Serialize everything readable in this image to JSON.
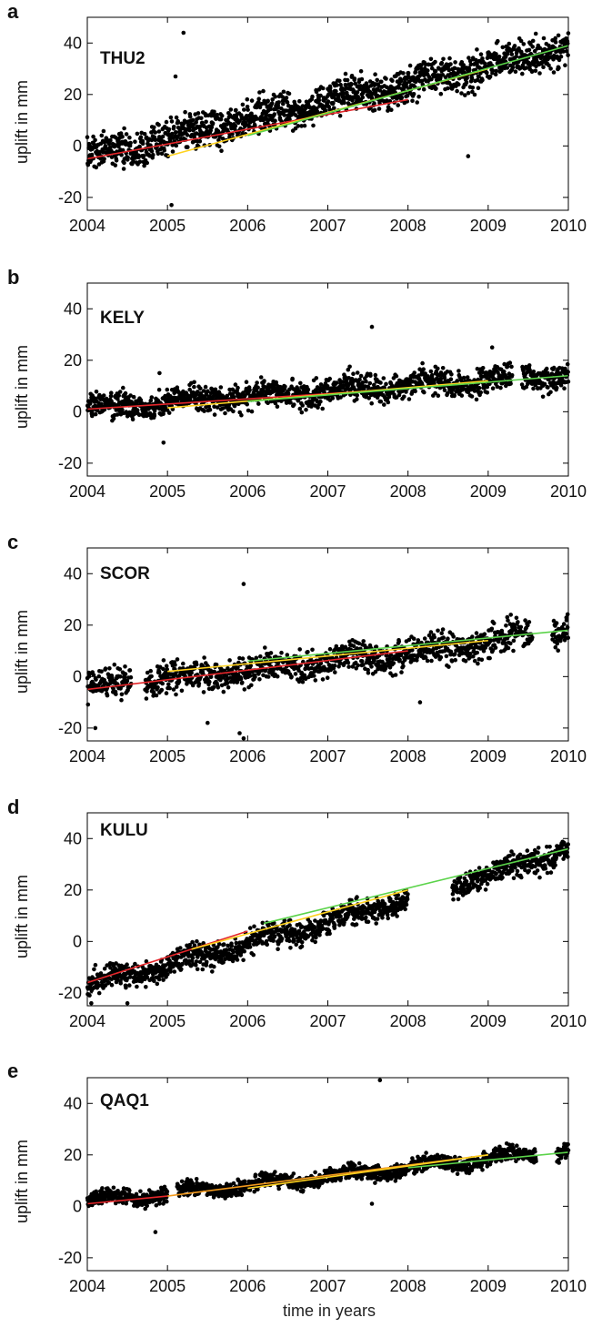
{
  "chart_data": [
    {
      "type": "scatter",
      "panel_label": "a",
      "station": "THU2",
      "ylabel": "uplift in mm",
      "xlim": [
        2004,
        2010
      ],
      "ylim": [
        -25,
        50
      ],
      "xticks": [
        "2004",
        "2005",
        "2006",
        "2007",
        "2008",
        "2009",
        "2010"
      ],
      "yticks": [
        "-20",
        "0",
        "20",
        "40"
      ],
      "ytick_values": [
        -20,
        0,
        20,
        40
      ],
      "scatter": {
        "t0": 2004,
        "t1": 2010,
        "y0": -4,
        "y1": 38,
        "quad": 0,
        "noise": 5.5,
        "count": 1500,
        "gaps": []
      },
      "trend_lines": [
        {
          "name": "red",
          "color": "#e4262a",
          "x": [
            2004.0,
            2008.0
          ],
          "y": [
            -5,
            18
          ]
        },
        {
          "name": "yellow",
          "color": "#ffd21f",
          "x": [
            2005.0,
            2009.0
          ],
          "y": [
            -4,
            30
          ]
        },
        {
          "name": "green",
          "color": "#5bd34a",
          "x": [
            2006.0,
            2010.0
          ],
          "y": [
            4,
            39
          ]
        }
      ],
      "outliers": [
        {
          "x": 2005.2,
          "y": 44
        },
        {
          "x": 2005.1,
          "y": 27
        },
        {
          "x": 2008.75,
          "y": -4
        },
        {
          "x": 2005.05,
          "y": -23
        }
      ]
    },
    {
      "type": "scatter",
      "panel_label": "b",
      "station": "KELY",
      "ylabel": "uplift in mm",
      "xlim": [
        2004,
        2010
      ],
      "ylim": [
        -25,
        50
      ],
      "xticks": [
        "2004",
        "2005",
        "2006",
        "2007",
        "2008",
        "2009",
        "2010"
      ],
      "yticks": [
        "-20",
        "0",
        "20",
        "40"
      ],
      "ytick_values": [
        -20,
        0,
        20,
        40
      ],
      "scatter": {
        "t0": 2004,
        "t1": 2010,
        "y0": 1,
        "y1": 14,
        "quad": 3,
        "noise": 4,
        "count": 1400,
        "gaps": [
          [
            2009.3,
            2009.42
          ]
        ]
      },
      "trend_lines": [
        {
          "name": "red",
          "color": "#e4262a",
          "x": [
            2004.0,
            2008.0
          ],
          "y": [
            1,
            9
          ]
        },
        {
          "name": "yellow",
          "color": "#ffd21f",
          "x": [
            2005.0,
            2009.0
          ],
          "y": [
            1.5,
            12
          ]
        },
        {
          "name": "green",
          "color": "#5bd34a",
          "x": [
            2006.0,
            2010.0
          ],
          "y": [
            4,
            14
          ]
        }
      ],
      "outliers": [
        {
          "x": 2007.55,
          "y": 33
        },
        {
          "x": 2009.05,
          "y": 25
        },
        {
          "x": 2004.9,
          "y": 15
        },
        {
          "x": 2004.95,
          "y": -12
        }
      ]
    },
    {
      "type": "scatter",
      "panel_label": "c",
      "station": "SCOR",
      "ylabel": "uplift in mm",
      "xlim": [
        2004,
        2010
      ],
      "ylim": [
        -25,
        50
      ],
      "xticks": [
        "2004",
        "2005",
        "2006",
        "2007",
        "2008",
        "2009",
        "2010"
      ],
      "yticks": [
        "-20",
        "0",
        "20",
        "40"
      ],
      "ytick_values": [
        -20,
        0,
        20,
        40
      ],
      "scatter": {
        "t0": 2004,
        "t1": 2010,
        "y0": -4,
        "y1": 18,
        "quad": -6,
        "noise": 4.5,
        "count": 1300,
        "gaps": [
          [
            2004.55,
            2004.72
          ],
          [
            2009.55,
            2009.8
          ]
        ]
      },
      "trend_lines": [
        {
          "name": "red",
          "color": "#e4262a",
          "x": [
            2004.0,
            2008.0
          ],
          "y": [
            -5,
            10
          ]
        },
        {
          "name": "yellow",
          "color": "#ffd21f",
          "x": [
            2005.0,
            2009.0
          ],
          "y": [
            2,
            14
          ]
        },
        {
          "name": "green",
          "color": "#5bd34a",
          "x": [
            2006.0,
            2010.0
          ],
          "y": [
            6,
            18
          ]
        }
      ],
      "outliers": [
        {
          "x": 2005.95,
          "y": 36
        },
        {
          "x": 2005.9,
          "y": -22
        },
        {
          "x": 2005.95,
          "y": -24
        },
        {
          "x": 2005.5,
          "y": -18
        },
        {
          "x": 2008.15,
          "y": -10
        },
        {
          "x": 2004.1,
          "y": -20
        }
      ]
    },
    {
      "type": "scatter",
      "panel_label": "d",
      "station": "KULU",
      "ylabel": "uplift in mm",
      "xlim": [
        2004,
        2010
      ],
      "ylim": [
        -25,
        50
      ],
      "xticks": [
        "2004",
        "2005",
        "2006",
        "2007",
        "2008",
        "2009",
        "2010"
      ],
      "yticks": [
        "-20",
        "0",
        "20",
        "40"
      ],
      "ytick_values": [
        -20,
        0,
        20,
        40
      ],
      "scatter": {
        "t0": 2004,
        "t1": 2010,
        "y0": -17,
        "y1": 36,
        "quad": -8,
        "noise": 3.8,
        "count": 1400,
        "gaps": [
          [
            2008.0,
            2008.55
          ]
        ]
      },
      "trend_lines": [
        {
          "name": "red",
          "color": "#e4262a",
          "x": [
            2004.0,
            2006.0
          ],
          "y": [
            -16,
            4
          ]
        },
        {
          "name": "yellow",
          "color": "#ffd21f",
          "x": [
            2005.3,
            2008.0
          ],
          "y": [
            -3,
            20
          ]
        },
        {
          "name": "green",
          "color": "#5bd34a",
          "x": [
            2006.2,
            2010.0
          ],
          "y": [
            7,
            36
          ]
        }
      ],
      "outliers": [
        {
          "x": 2004.05,
          "y": -24
        },
        {
          "x": 2004.5,
          "y": -24
        }
      ]
    },
    {
      "type": "scatter",
      "panel_label": "e",
      "station": "QAQ1",
      "ylabel": "uplift in mm",
      "xlabel": "time in years",
      "xlim": [
        2004,
        2010
      ],
      "ylim": [
        -25,
        50
      ],
      "xticks": [
        "2004",
        "2005",
        "2006",
        "2007",
        "2008",
        "2009",
        "2010"
      ],
      "yticks": [
        "-20",
        "0",
        "20",
        "40"
      ],
      "ytick_values": [
        -20,
        0,
        20,
        40
      ],
      "scatter": {
        "t0": 2004,
        "t1": 2010,
        "y0": 2,
        "y1": 22,
        "quad": -2,
        "noise": 2.3,
        "count": 1500,
        "gaps": [
          [
            2005.0,
            2005.12
          ],
          [
            2009.6,
            2009.85
          ]
        ]
      },
      "trend_lines": [
        {
          "name": "red",
          "color": "#e4262a",
          "x": [
            2004.0,
            2005.0
          ],
          "y": [
            1,
            4
          ]
        },
        {
          "name": "orange",
          "color": "#f39a1e",
          "x": [
            2005.0,
            2009.0
          ],
          "y": [
            4,
            20
          ]
        },
        {
          "name": "yellow",
          "color": "#ffd21f",
          "x": [
            2006.0,
            2009.0
          ],
          "y": [
            7,
            20
          ]
        },
        {
          "name": "green",
          "color": "#5bd34a",
          "x": [
            2008.0,
            2010.0
          ],
          "y": [
            15,
            21
          ]
        }
      ],
      "outliers": [
        {
          "x": 2007.65,
          "y": 49
        },
        {
          "x": 2004.85,
          "y": -10
        },
        {
          "x": 2007.55,
          "y": 1
        }
      ]
    }
  ]
}
